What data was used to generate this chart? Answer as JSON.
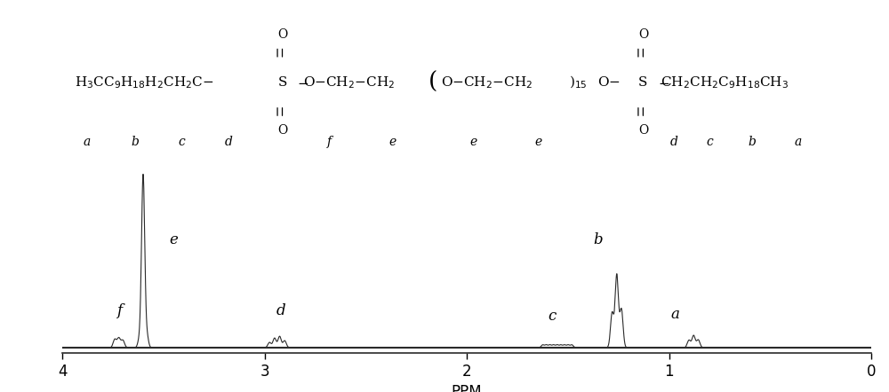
{
  "xlim": [
    4.0,
    0.0
  ],
  "ylim": [
    -0.03,
    1.1
  ],
  "xlabel": "PPM",
  "xlabel_fontsize": 12,
  "xticks": [
    4,
    3,
    2,
    1,
    0
  ],
  "background_color": "#ffffff",
  "line_color": "#2a2a2a",
  "tick_fontsize": 12,
  "peak_label_fontsize": 12,
  "formula_fontsize": 11
}
